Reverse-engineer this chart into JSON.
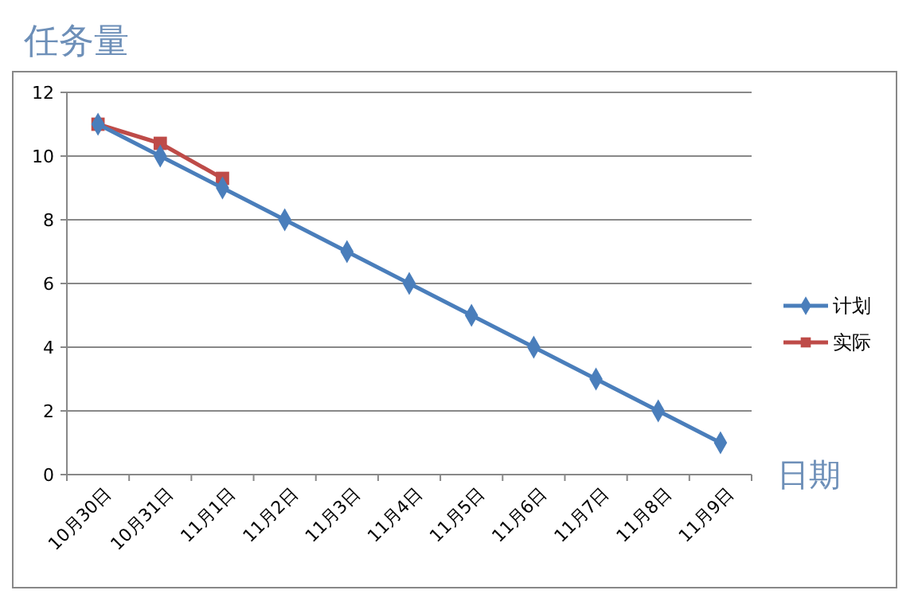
{
  "chart_data": {
    "type": "line",
    "ylabel": "任务量",
    "xlabel": "日期",
    "categories": [
      "10月30日",
      "10月31日",
      "11月1日",
      "11月2日",
      "11月3日",
      "11月4日",
      "11月5日",
      "11月6日",
      "11月7日",
      "11月8日",
      "11月9日"
    ],
    "series": [
      {
        "name": "计划",
        "color": "#4a7ebb",
        "marker": "diamond",
        "values": [
          11,
          10,
          9,
          8,
          7,
          6,
          5,
          4,
          3,
          2,
          1
        ]
      },
      {
        "name": "实际",
        "color": "#be4b48",
        "marker": "square",
        "values": [
          11,
          10.4,
          9.3,
          null,
          null,
          null,
          null,
          null,
          null,
          null,
          null
        ]
      }
    ],
    "ylim": [
      0,
      12
    ],
    "yticks": [
      0,
      2,
      4,
      6,
      8,
      10,
      12
    ],
    "grid": "y",
    "legend": "right",
    "line_style": "solid"
  }
}
